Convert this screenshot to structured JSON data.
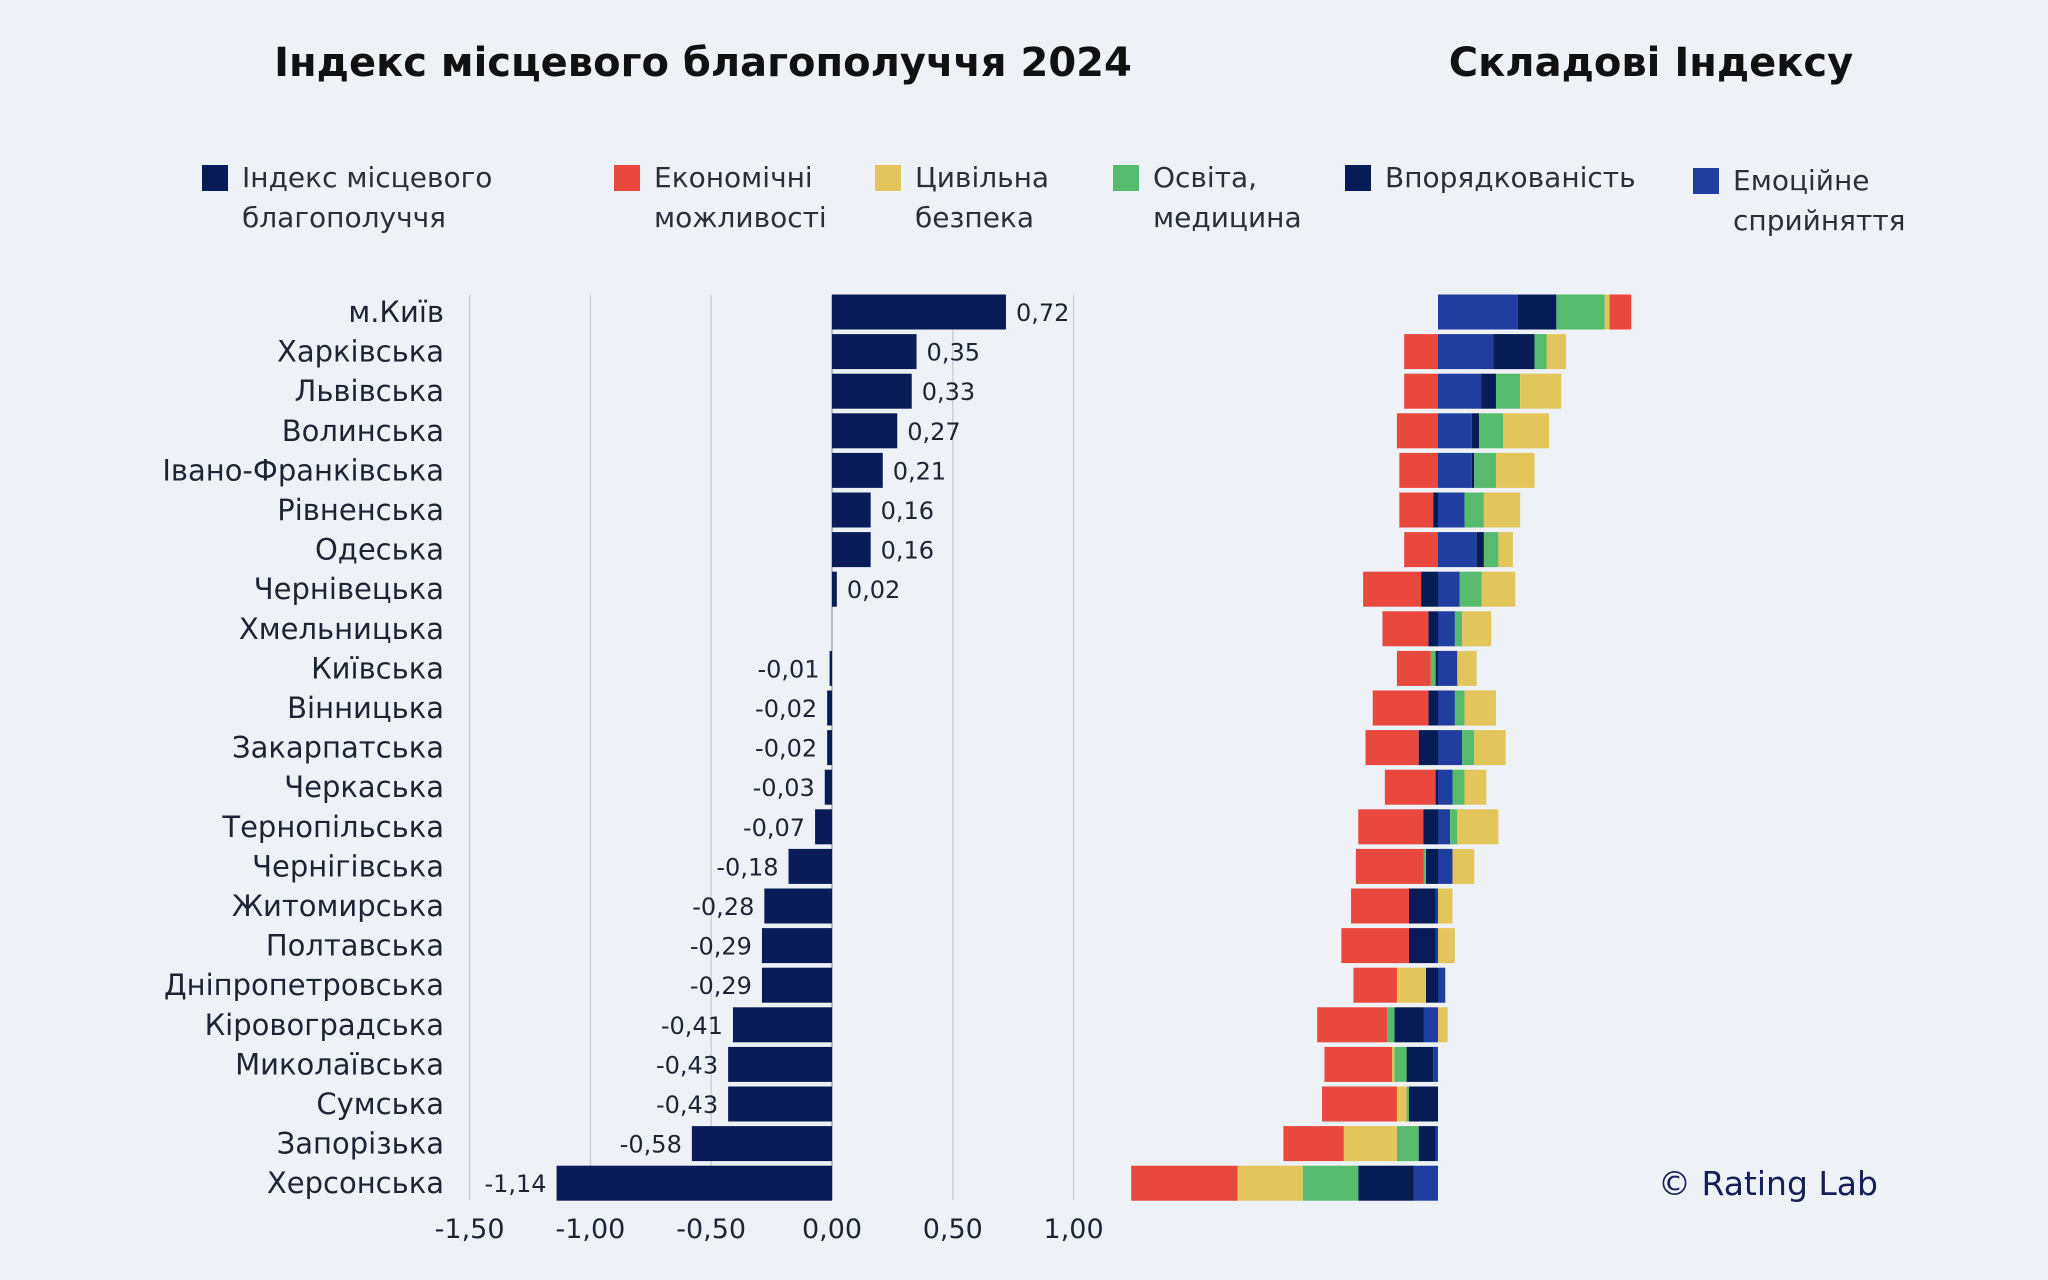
{
  "chart_data": [
    {
      "type": "bar",
      "orientation": "horizontal",
      "title": "Індекс місцевого благополуччя 2024",
      "categories": [
        "м.Київ",
        "Харківська",
        "Львівська",
        "Волинська",
        "Івано-Франківська",
        "Рівненська",
        "Одеська",
        "Чернівецька",
        "Хмельницька",
        "Київська",
        "Вінницька",
        "Закарпатська",
        "Черкаська",
        "Тернопільська",
        "Чернігівська",
        "Житомирська",
        "Полтавська",
        "Дніпропетровська",
        "Кіровоградська",
        "Миколаївська",
        "Сумська",
        "Запорізька",
        "Херсонська"
      ],
      "values": [
        0.72,
        0.35,
        0.33,
        0.27,
        0.21,
        0.16,
        0.16,
        0.02,
        0.0,
        -0.01,
        -0.02,
        -0.02,
        -0.03,
        -0.07,
        -0.18,
        -0.28,
        -0.29,
        -0.29,
        -0.41,
        -0.43,
        -0.43,
        -0.58,
        -1.14
      ],
      "value_labels": [
        "0,72",
        "0,35",
        "0,33",
        "0,27",
        "0,21",
        "0,16",
        "0,16",
        "0,02",
        "",
        "-0,01",
        "-0,02",
        "-0,02",
        "-0,03",
        "-0,07",
        "-0,18",
        "-0,28",
        "-0,29",
        "-0,29",
        "-0,41",
        "-0,43",
        "-0,43",
        "-0,58",
        "-1,14"
      ],
      "series_name": "Індекс місцевого благополуччя",
      "color": "#0a1c57",
      "xlim": [
        -1.5,
        1.0
      ],
      "xticks": [
        -1.5,
        -1.0,
        -0.5,
        0,
        0.5,
        1.0
      ],
      "xtick_labels": [
        "-1,50",
        "-1,00",
        "-0,50",
        "0,00",
        "0,50",
        "1,00"
      ],
      "grid": true
    },
    {
      "type": "bar",
      "orientation": "horizontal",
      "stacked": true,
      "diverging": true,
      "title": "Складові Індексу",
      "categories": [
        "м.Київ",
        "Харківська",
        "Львівська",
        "Волинська",
        "Івано-Франківська",
        "Рівненська",
        "Одеська",
        "Чернівецька",
        "Хмельницька",
        "Київська",
        "Вінницька",
        "Закарпатська",
        "Черкаська",
        "Тернопільська",
        "Чернігівська",
        "Житомирська",
        "Полтавська",
        "Дніпропетровська",
        "Кіровоградська",
        "Миколаївська",
        "Сумська",
        "Запорізька",
        "Херсонська"
      ],
      "stack_order": [
        "emotional",
        "order",
        "education",
        "safety",
        "economic"
      ],
      "series": [
        {
          "key": "emotional",
          "name": "Емоційне сприйняття",
          "color": "#203ea0",
          "values": [
            0.33,
            0.23,
            0.18,
            0.14,
            0.14,
            0.11,
            0.16,
            0.09,
            0.07,
            0.08,
            0.07,
            0.1,
            0.06,
            0.05,
            0.06,
            -0.01,
            -0.01,
            0.03,
            -0.06,
            -0.02,
            0.0,
            -0.01,
            -0.1
          ]
        },
        {
          "key": "order",
          "name": "Впорядкованість",
          "color": "#071b55",
          "values": [
            0.16,
            0.17,
            0.06,
            0.03,
            0.01,
            -0.02,
            0.03,
            -0.07,
            -0.04,
            -0.01,
            -0.04,
            -0.08,
            -0.01,
            -0.06,
            -0.05,
            -0.11,
            -0.11,
            -0.05,
            -0.12,
            -0.11,
            -0.12,
            -0.07,
            -0.23
          ]
        },
        {
          "key": "education",
          "name": "Освіта, медицина",
          "color": "#57bb6d",
          "values": [
            0.2,
            0.05,
            0.1,
            0.1,
            0.09,
            0.08,
            0.06,
            0.09,
            0.03,
            -0.02,
            0.04,
            0.05,
            0.05,
            0.03,
            -0.01,
            0.0,
            0.0,
            0.0,
            -0.03,
            -0.05,
            -0.01,
            -0.09,
            -0.23
          ]
        },
        {
          "key": "safety",
          "name": "Цивільна безпека",
          "color": "#e2c65c",
          "values": [
            0.02,
            0.08,
            0.17,
            0.19,
            0.16,
            0.15,
            0.06,
            0.14,
            0.12,
            0.08,
            0.13,
            0.13,
            0.09,
            0.17,
            0.09,
            0.06,
            0.07,
            -0.12,
            0.04,
            -0.01,
            -0.04,
            -0.22,
            -0.27
          ]
        },
        {
          "key": "economic",
          "name": "Економічні можливості",
          "color": "#e8483e",
          "values": [
            0.09,
            -0.14,
            -0.14,
            -0.17,
            -0.16,
            -0.14,
            -0.14,
            -0.24,
            -0.19,
            -0.14,
            -0.23,
            -0.22,
            -0.21,
            -0.27,
            -0.28,
            -0.24,
            -0.28,
            -0.18,
            -0.29,
            -0.28,
            -0.31,
            -0.25,
            -0.44
          ]
        }
      ]
    }
  ],
  "titles": {
    "left": "Індекс місцевого благополуччя 2024",
    "right": "Складові Індексу"
  },
  "legend": [
    {
      "label": "Індекс місцевого\nблагополуччя",
      "color": "#0a1c57"
    },
    {
      "label": "Економічні\nможливості",
      "color": "#e8483e"
    },
    {
      "label": "Цивільна\nбезпека",
      "color": "#e2c65c"
    },
    {
      "label": "Освіта,\nмедицина",
      "color": "#57bb6d"
    },
    {
      "label": "Впорядкованість",
      "color": "#071b55"
    },
    {
      "label": "Емоційне\nсприйняття",
      "color": "#203ea0"
    }
  ],
  "copyright": "© Rating Lab"
}
